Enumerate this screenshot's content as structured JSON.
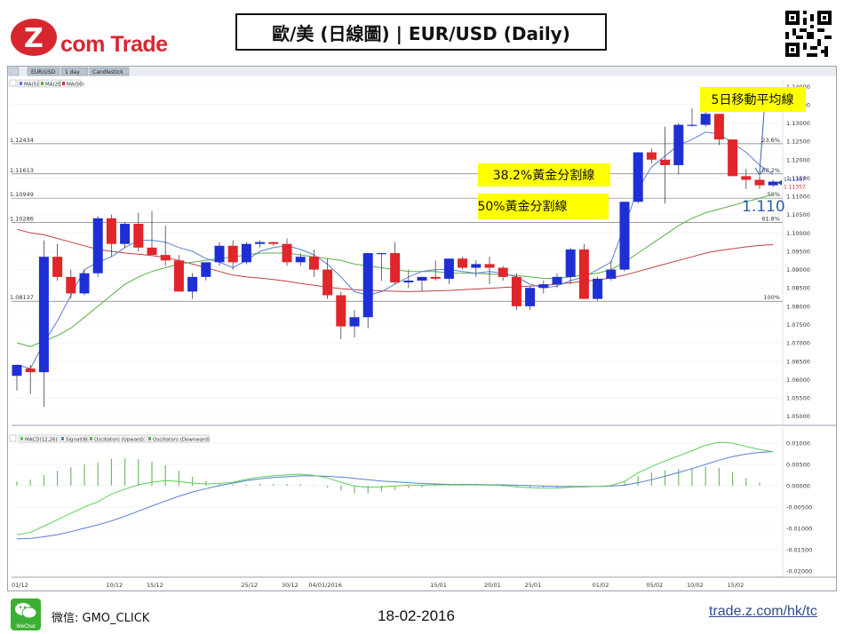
{
  "brand": {
    "logo_text": "com Trade",
    "logo_letter": "Z"
  },
  "title": "歐/美 (日線圖) | EUR/USD  (Daily)",
  "toolbar": {
    "symbol": "EUR/USD",
    "period": "1 day",
    "style": "Candlestick"
  },
  "legend_price": [
    "MA(5)",
    "MA(20)",
    "MA(50)"
  ],
  "legend_macd": [
    "MACD(12,26)",
    "Signal(9)",
    "Oscillators (Upward)",
    "Oscillators (Downward)"
  ],
  "colors": {
    "up": "#1f2fd6",
    "down": "#e0262a",
    "ma5": "#5a7fd1",
    "ma20": "#5cae4a",
    "ma50": "#c24040",
    "callout": "#ffff00",
    "brand": "#d8262f",
    "link": "#2d4d8c"
  },
  "annotations": {
    "ma5_note": "5日移動平均線",
    "fib382_note": "38.2%黃金分割線",
    "fib50_note": "50%黃金分割線",
    "price_note": "1.110"
  },
  "footer": {
    "wechat_label": "WeChat",
    "wechat_id": "微信: GMO_CLICK",
    "date": "18-02-2016",
    "url": "trade.z.com/hk/tc"
  },
  "chart_data": {
    "type": "candlestick",
    "price_axis": {
      "ticks": [
        "1.14000",
        "1.13500",
        "1.13000",
        "1.12500",
        "1.12000",
        "1.11500",
        "1.11000",
        "1.10500",
        "1.10000",
        "1.09500",
        "1.09000",
        "1.08500",
        "1.08000",
        "1.07500",
        "1.07000",
        "1.06500",
        "1.06000",
        "1.05500",
        "1.05000"
      ],
      "min": 1.0475,
      "max": 1.142
    },
    "fib_levels": [
      {
        "label": "23.6%",
        "value": 1.12434,
        "left_label": "1.12434"
      },
      {
        "label": "38.2%",
        "value": 1.11613,
        "left_label": "1.11613"
      },
      {
        "label": "50%",
        "value": 1.10949,
        "left_label": "1.10949"
      },
      {
        "label": "61.8%",
        "value": 1.10286,
        "left_label": "1.10286"
      },
      {
        "label": "100%",
        "value": 1.08137,
        "left_label": "1.08137"
      }
    ],
    "last_price_tags": [
      "1.11367",
      "1.11357"
    ],
    "x_labels": [
      {
        "i": 0,
        "text": "01/12"
      },
      {
        "i": 7,
        "text": "10/12"
      },
      {
        "i": 10,
        "text": "15/12"
      },
      {
        "i": 17,
        "text": "25/12"
      },
      {
        "i": 20,
        "text": "30/12"
      },
      {
        "i": 22,
        "text": "04/01/2016"
      },
      {
        "i": 31,
        "text": "15/01"
      },
      {
        "i": 35,
        "text": "20/01"
      },
      {
        "i": 38,
        "text": "25/01"
      },
      {
        "i": 43,
        "text": "01/02"
      },
      {
        "i": 47,
        "text": "05/02"
      },
      {
        "i": 50,
        "text": "10/02"
      },
      {
        "i": 53,
        "text": "15/02"
      }
    ],
    "candles": [
      [
        1.061,
        1.064,
        1.057,
        1.064
      ],
      [
        1.063,
        1.064,
        1.056,
        1.062
      ],
      [
        1.062,
        1.098,
        1.0525,
        1.0935
      ],
      [
        1.0935,
        1.097,
        1.087,
        1.088
      ],
      [
        1.088,
        1.09,
        1.082,
        1.0835
      ],
      [
        1.0835,
        1.09,
        1.083,
        1.089
      ],
      [
        1.089,
        1.1045,
        1.088,
        1.104
      ],
      [
        1.104,
        1.105,
        1.0935,
        1.097
      ],
      [
        1.097,
        1.103,
        1.096,
        1.1025
      ],
      [
        1.1025,
        1.1055,
        1.095,
        1.096
      ],
      [
        1.096,
        1.106,
        1.094,
        1.094
      ],
      [
        1.094,
        1.102,
        1.091,
        1.0925
      ],
      [
        1.0925,
        1.094,
        1.084,
        1.084
      ],
      [
        1.084,
        1.089,
        1.082,
        1.088
      ],
      [
        1.088,
        1.092,
        1.087,
        1.092
      ],
      [
        1.092,
        1.0975,
        1.091,
        1.0965
      ],
      [
        1.0965,
        1.098,
        1.09,
        1.092
      ],
      [
        1.092,
        1.0975,
        1.0915,
        1.097
      ],
      [
        1.097,
        1.098,
        1.096,
        1.0975
      ],
      [
        1.0975,
        1.0975,
        1.0965,
        1.097
      ],
      [
        1.097,
        1.0985,
        1.091,
        1.092
      ],
      [
        1.092,
        1.0945,
        1.091,
        1.0935
      ],
      [
        1.0935,
        1.0955,
        1.088,
        1.09
      ],
      [
        1.09,
        1.093,
        1.082,
        1.083
      ],
      [
        1.083,
        1.084,
        1.071,
        1.0745
      ],
      [
        1.0745,
        1.079,
        1.0715,
        1.077
      ],
      [
        1.077,
        1.0945,
        1.074,
        1.0945
      ],
      [
        1.0945,
        1.0945,
        1.087,
        1.0945
      ],
      [
        1.0945,
        1.0975,
        1.086,
        1.0865
      ],
      [
        1.0865,
        1.09,
        1.085,
        1.087
      ],
      [
        1.087,
        1.088,
        1.084,
        1.088
      ],
      [
        1.088,
        1.0925,
        1.087,
        1.0875
      ],
      [
        1.0875,
        1.093,
        1.086,
        1.093
      ],
      [
        1.093,
        1.0935,
        1.09,
        1.0905
      ],
      [
        1.0905,
        1.0925,
        1.088,
        1.0915
      ],
      [
        1.0915,
        1.0935,
        1.086,
        1.0905
      ],
      [
        1.0905,
        1.091,
        1.087,
        1.088
      ],
      [
        1.088,
        1.089,
        1.079,
        1.08
      ],
      [
        1.08,
        1.0855,
        1.079,
        1.085
      ],
      [
        1.085,
        1.087,
        1.0835,
        1.086
      ],
      [
        1.086,
        1.089,
        1.085,
        1.088
      ],
      [
        1.088,
        1.096,
        1.086,
        1.0955
      ],
      [
        1.0955,
        1.097,
        1.082,
        1.082
      ],
      [
        1.082,
        1.088,
        1.0815,
        1.0875
      ],
      [
        1.0875,
        1.0925,
        1.087,
        1.09
      ],
      [
        1.09,
        1.1085,
        1.0895,
        1.1085
      ],
      [
        1.1085,
        1.122,
        1.108,
        1.122
      ],
      [
        1.122,
        1.123,
        1.119,
        1.12
      ],
      [
        1.12,
        1.129,
        1.108,
        1.1185
      ],
      [
        1.1185,
        1.13,
        1.116,
        1.1295
      ],
      [
        1.1295,
        1.134,
        1.129,
        1.1295
      ],
      [
        1.1295,
        1.1375,
        1.129,
        1.1325
      ],
      [
        1.1325,
        1.1325,
        1.124,
        1.1255
      ],
      [
        1.1255,
        1.1255,
        1.1155,
        1.1155
      ],
      [
        1.1155,
        1.1175,
        1.112,
        1.1145
      ],
      [
        1.1145,
        1.1155,
        1.112,
        1.113
      ],
      [
        1.113,
        1.1145,
        1.1125,
        1.114
      ]
    ],
    "ma5": [
      1.064,
      1.063,
      1.07,
      1.076,
      1.083,
      1.09,
      1.092,
      1.0935,
      1.096,
      1.098,
      1.098,
      1.0975,
      1.096,
      1.095,
      1.093,
      1.092,
      1.0905,
      1.0925,
      1.095,
      1.096,
      1.0965,
      1.0955,
      1.094,
      1.0915,
      1.088,
      1.084,
      1.083,
      1.084,
      1.086,
      1.088,
      1.0895,
      1.09,
      1.09,
      1.0895,
      1.089,
      1.0895,
      1.089,
      1.088,
      1.086,
      1.085,
      1.0855,
      1.087,
      1.088,
      1.09,
      1.092,
      1.102,
      1.112,
      1.118,
      1.121,
      1.124,
      1.1255,
      1.1275,
      1.127,
      1.1245,
      1.122,
      1.1185,
      1.116
    ],
    "ma20": [
      1.07,
      1.069,
      1.0705,
      1.072,
      1.074,
      1.077,
      1.08,
      1.083,
      1.086,
      1.088,
      1.0895,
      1.0905,
      1.0915,
      1.092,
      1.0925,
      1.093,
      1.0935,
      1.094,
      1.0945,
      1.0945,
      1.0945,
      1.094,
      1.0935,
      1.093,
      1.0925,
      1.0915,
      1.091,
      1.0905,
      1.09,
      1.0895,
      1.0895,
      1.0895,
      1.089,
      1.089,
      1.089,
      1.0888,
      1.0886,
      1.0884,
      1.088,
      1.0876,
      1.0876,
      1.088,
      1.0885,
      1.089,
      1.09,
      1.092,
      1.0945,
      1.097,
      1.0995,
      1.102,
      1.104,
      1.1055,
      1.1065,
      1.1075,
      1.1085,
      1.1095,
      1.1105
    ],
    "ma50": [
      1.101,
      1.1,
      1.0995,
      1.0985,
      1.0975,
      1.0965,
      1.0955,
      1.095,
      1.0945,
      1.0942,
      1.0938,
      1.0933,
      1.0925,
      1.0915,
      1.0905,
      1.0895,
      1.0885,
      1.088,
      1.0877,
      1.0873,
      1.0868,
      1.0862,
      1.0857,
      1.0852,
      1.0848,
      1.0845,
      1.0843,
      1.0842,
      1.0841,
      1.084,
      1.0841,
      1.0842,
      1.0843,
      1.0845,
      1.0847,
      1.0849,
      1.0851,
      1.0853,
      1.0855,
      1.0857,
      1.086,
      1.0864,
      1.0868,
      1.0872,
      1.0877,
      1.0885,
      1.0895,
      1.0905,
      1.0915,
      1.0925,
      1.0935,
      1.0945,
      1.0952,
      1.0957,
      1.0962,
      1.0966,
      1.0968
    ],
    "macd_axis": {
      "ticks": [
        "0.01000",
        "0.00500",
        "0.00000",
        "-0.00500",
        "-0.01000",
        "-0.01500",
        "-0.02000"
      ],
      "min": -0.0215,
      "max": 0.0125
    },
    "macd": [
      -0.0115,
      -0.011,
      -0.0095,
      -0.008,
      -0.0065,
      -0.005,
      -0.0038,
      -0.002,
      -0.0008,
      0.0002,
      0.0008,
      0.0012,
      0.001,
      0.0006,
      0.0004,
      0.0005,
      0.0008,
      0.0015,
      0.002,
      0.0023,
      0.0025,
      0.0027,
      0.0024,
      0.0018,
      0.0008,
      -0.0001,
      -0.0004,
      -0.0003,
      -0.0001,
      0.0001,
      0.0001,
      0.0002,
      0.0002,
      0.0002,
      0.0002,
      0.0001,
      0.0,
      -0.0003,
      -0.0005,
      -0.0006,
      -0.0006,
      -0.0004,
      -0.0003,
      -0.0002,
      0.0,
      0.001,
      0.003,
      0.0045,
      0.0058,
      0.007,
      0.0082,
      0.0095,
      0.0102,
      0.01,
      0.0092,
      0.0085,
      0.008
    ],
    "signal": [
      -0.0125,
      -0.0124,
      -0.012,
      -0.0115,
      -0.0108,
      -0.01,
      -0.0092,
      -0.0083,
      -0.0072,
      -0.006,
      -0.0048,
      -0.0036,
      -0.0025,
      -0.0015,
      -0.0007,
      0.0,
      0.0006,
      0.0012,
      0.0016,
      0.0019,
      0.0021,
      0.0023,
      0.0023,
      0.0022,
      0.002,
      0.0017,
      0.0014,
      0.0011,
      0.0009,
      0.0007,
      0.0005,
      0.0004,
      0.0003,
      0.0003,
      0.0003,
      0.0002,
      0.0002,
      0.0001,
      0.0,
      -0.0001,
      -0.0002,
      -0.0002,
      -0.0002,
      -0.0002,
      -0.0001,
      0.0001,
      0.0007,
      0.0014,
      0.0022,
      0.0031,
      0.004,
      0.005,
      0.006,
      0.0068,
      0.0074,
      0.0078,
      0.008
    ],
    "histogram": [
      0.001,
      0.0014,
      0.0025,
      0.0035,
      0.0043,
      0.005,
      0.0054,
      0.0063,
      0.0064,
      0.0062,
      0.0056,
      0.0048,
      0.0035,
      0.0021,
      0.0011,
      0.0005,
      0.0002,
      0.0003,
      0.0004,
      0.0004,
      0.0004,
      0.0004,
      0.0001,
      -0.0004,
      -0.0012,
      -0.0018,
      -0.0018,
      -0.0014,
      -0.001,
      -0.0006,
      -0.0004,
      -0.0002,
      -0.0001,
      -0.0001,
      -0.0001,
      -0.0001,
      -0.0002,
      -0.0004,
      -0.0005,
      -0.0005,
      -0.0004,
      -0.0002,
      -0.0001,
      0.0,
      0.0001,
      0.0009,
      0.0023,
      0.0031,
      0.0036,
      0.0039,
      0.0042,
      0.0045,
      0.0042,
      0.0032,
      0.0018,
      0.0007,
      0.0
    ]
  }
}
